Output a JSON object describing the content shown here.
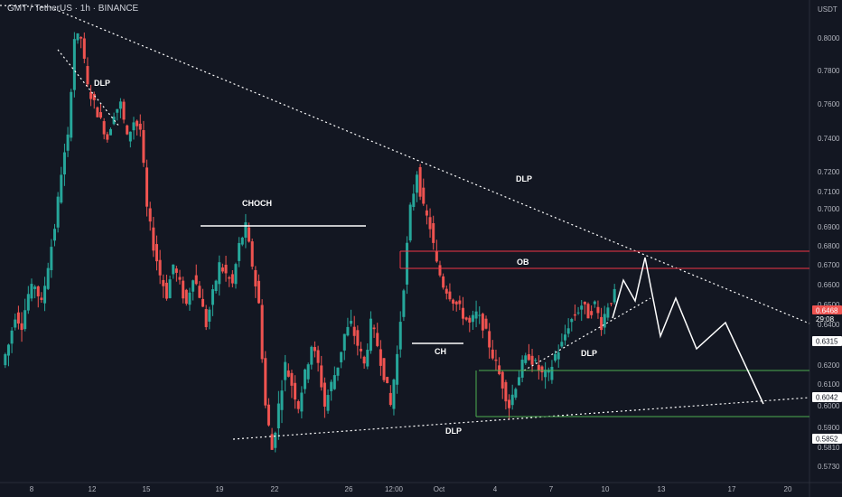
{
  "header": {
    "symbol_title": "GMT / TetherUS · 1h · BINANCE"
  },
  "axis": {
    "currency": "USDT",
    "yticks": [
      "0.8000",
      "0.7800",
      "0.7600",
      "0.7400",
      "0.7200",
      "0.7100",
      "0.7000",
      "0.6900",
      "0.6800",
      "0.6700",
      "0.6600",
      "0.6500",
      "0.6400",
      "0.6200",
      "0.6100",
      "0.6000",
      "0.5900",
      "0.5810",
      "0.5730"
    ],
    "xticks": [
      "8",
      "12",
      "15",
      "19",
      "22",
      "26",
      "12:00",
      "Oct",
      "4",
      "7",
      "10",
      "13",
      "17",
      "20"
    ],
    "current_price": "0.6468",
    "countdown": "29:08",
    "price_boxes": [
      "0.6315",
      "0.6042",
      "0.5852"
    ]
  },
  "annotations": {
    "dlp_top": "DLP",
    "choch": "CHOCH",
    "dlp_right": "DLP",
    "ob": "OB",
    "ch": "CH",
    "dlp_mid": "DLP",
    "dlp_bottom": "DLP"
  },
  "colors": {
    "background": "#131722",
    "up": "#26a69a",
    "down": "#ef5350",
    "text": "#d1d4dc",
    "ob_line": "#f23645",
    "green_line": "#4caf50",
    "axis_text": "#b2b5be"
  },
  "chart_data": {
    "type": "candlestick",
    "series_shape": [
      [
        0.62,
        0.63,
        0.645,
        0.64,
        0.655,
        0.66,
        0.65,
        0.67,
        0.69,
        0.72,
        0.74,
        0.8,
        0.8,
        0.77,
        0.76,
        0.75,
        0.74,
        0.755,
        0.76,
        0.74,
        0.75,
        0.745,
        0.7,
        0.68,
        0.665,
        0.655,
        0.67,
        0.66,
        0.65,
        0.665,
        0.655,
        0.64,
        0.655,
        0.67,
        0.665,
        0.66,
        0.68,
        0.69,
        0.67,
        0.65,
        0.6,
        0.58,
        0.6,
        0.62,
        0.61,
        0.6,
        0.615,
        0.63,
        0.62,
        0.6,
        0.61,
        0.62,
        0.635,
        0.64,
        0.63,
        0.62,
        0.64,
        0.63,
        0.615,
        0.6,
        0.625,
        0.66,
        0.7,
        0.72,
        0.7,
        0.69,
        0.67,
        0.66,
        0.655,
        0.65,
        0.645,
        0.64,
        0.645,
        0.64,
        0.63,
        0.62,
        0.61,
        0.6,
        0.61,
        0.62,
        0.625,
        0.62,
        0.615,
        0.615,
        0.625,
        0.63,
        0.64,
        0.645,
        0.65,
        0.645,
        0.65,
        0.64,
        0.65,
        0.655
      ]
    ]
  }
}
